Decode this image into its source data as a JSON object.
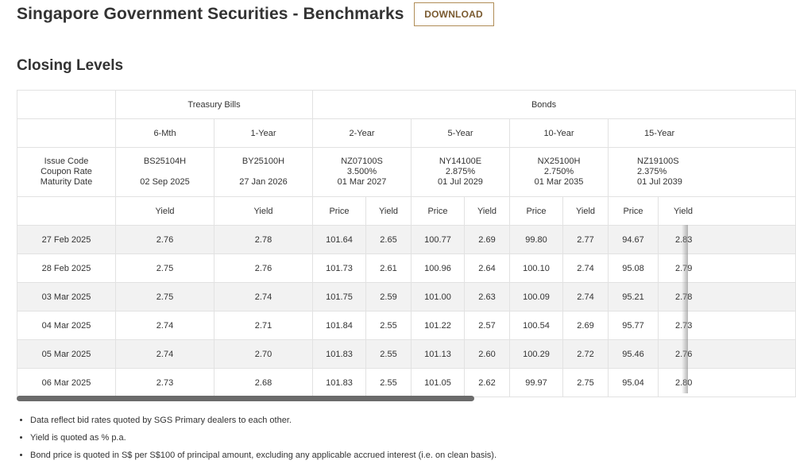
{
  "header": {
    "title": "Singapore Government Securities - Benchmarks",
    "download_label": "DOWNLOAD"
  },
  "section_title": "Closing Levels",
  "table": {
    "groups": {
      "tbills": "Treasury Bills",
      "bonds": "Bonds"
    },
    "row_header": [
      "Issue Code",
      "Coupon Rate",
      "Maturity Date"
    ],
    "tenors": [
      "6-Mth",
      "1-Year",
      "2-Year",
      "5-Year",
      "10-Year",
      "15-Year"
    ],
    "issues": [
      {
        "code": "BS25104H",
        "coupon": "",
        "maturity": "02 Sep 2025"
      },
      {
        "code": "BY25100H",
        "coupon": "",
        "maturity": "27 Jan 2026"
      },
      {
        "code": "NZ07100S",
        "coupon": "3.500%",
        "maturity": "01 Mar 2027"
      },
      {
        "code": "NY14100E",
        "coupon": "2.875%",
        "maturity": "01 Jul 2029"
      },
      {
        "code": "NX25100H",
        "coupon": "2.750%",
        "maturity": "01 Mar 2035"
      },
      {
        "code": "NZ19100S",
        "coupon": "2.375%",
        "maturity": "01 Jul 2039"
      }
    ],
    "measures": {
      "yield": "Yield",
      "price": "Price"
    },
    "rows": [
      {
        "date": "27 Feb 2025",
        "values": [
          "2.76",
          "2.78",
          "101.64",
          "2.65",
          "100.77",
          "2.69",
          "99.80",
          "2.77",
          "94.67",
          "2.83"
        ]
      },
      {
        "date": "28 Feb 2025",
        "values": [
          "2.75",
          "2.76",
          "101.73",
          "2.61",
          "100.96",
          "2.64",
          "100.10",
          "2.74",
          "95.08",
          "2.79"
        ]
      },
      {
        "date": "03 Mar 2025",
        "values": [
          "2.75",
          "2.74",
          "101.75",
          "2.59",
          "101.00",
          "2.63",
          "100.09",
          "2.74",
          "95.21",
          "2.78"
        ]
      },
      {
        "date": "04 Mar 2025",
        "values": [
          "2.74",
          "2.71",
          "101.84",
          "2.55",
          "101.22",
          "2.57",
          "100.54",
          "2.69",
          "95.77",
          "2.73"
        ]
      },
      {
        "date": "05 Mar 2025",
        "values": [
          "2.74",
          "2.70",
          "101.83",
          "2.55",
          "101.13",
          "2.60",
          "100.29",
          "2.72",
          "95.46",
          "2.76"
        ]
      },
      {
        "date": "06 Mar 2025",
        "values": [
          "2.73",
          "2.68",
          "101.83",
          "2.55",
          "101.05",
          "2.62",
          "99.97",
          "2.75",
          "95.04",
          "2.80"
        ]
      }
    ]
  },
  "notes": [
    "Data reflect bid rates quoted by SGS Primary dealers to each other.",
    "Yield is quoted as % p.a.",
    "Bond price is quoted in S$ per S$100 of principal amount, excluding any applicable accrued interest (i.e. on clean basis)."
  ],
  "colors": {
    "accent_border": "#b08d57",
    "accent_text": "#7a5a2f",
    "row_shade": "#f2f2f2"
  }
}
